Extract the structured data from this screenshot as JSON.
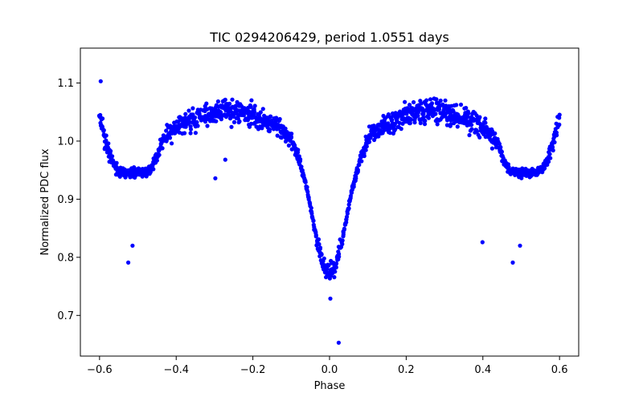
{
  "chart_data": {
    "type": "scatter",
    "title": "TIC 0294206429, period 1.0551 days",
    "xlabel": "Phase",
    "ylabel": "Normalized PDC flux",
    "xlim": [
      -0.65,
      0.65
    ],
    "ylim": [
      0.63,
      1.16
    ],
    "xticks": [
      -0.6,
      -0.4,
      -0.2,
      0.0,
      0.2,
      0.4,
      0.6
    ],
    "xtick_labels": [
      "−0.6",
      "−0.4",
      "−0.2",
      "0.0",
      "0.2",
      "0.4",
      "0.6"
    ],
    "yticks": [
      0.7,
      0.8,
      0.9,
      1.0,
      1.1
    ],
    "ytick_labels": [
      "0.7",
      "0.8",
      "0.9",
      "1.0",
      "1.1"
    ],
    "grid": false,
    "marker_color": "#0000ff",
    "outliers": [
      {
        "x": -0.597,
        "y": 1.103
      },
      {
        "x": -0.525,
        "y": 0.791
      },
      {
        "x": -0.514,
        "y": 0.82
      },
      {
        "x": -0.298,
        "y": 0.936
      },
      {
        "x": -0.272,
        "y": 0.968
      },
      {
        "x": 0.002,
        "y": 0.729
      },
      {
        "x": 0.024,
        "y": 0.653
      },
      {
        "x": 0.399,
        "y": 0.826
      },
      {
        "x": 0.478,
        "y": 0.791
      },
      {
        "x": 0.497,
        "y": 0.82
      }
    ],
    "series": [
      {
        "values": [
          {
            "x": -0.6,
            "y": 1.04
          },
          {
            "x": -0.585,
            "y": 1.0
          },
          {
            "x": -0.57,
            "y": 0.97
          },
          {
            "x": -0.555,
            "y": 0.952
          },
          {
            "x": -0.54,
            "y": 0.945
          },
          {
            "x": -0.5,
            "y": 0.945
          },
          {
            "x": -0.47,
            "y": 0.95
          },
          {
            "x": -0.455,
            "y": 0.965
          },
          {
            "x": -0.44,
            "y": 0.995
          },
          {
            "x": -0.42,
            "y": 1.015
          },
          {
            "x": -0.38,
            "y": 1.03
          },
          {
            "x": -0.3,
            "y": 1.05
          },
          {
            "x": -0.26,
            "y": 1.055
          },
          {
            "x": -0.2,
            "y": 1.045
          },
          {
            "x": -0.15,
            "y": 1.03
          },
          {
            "x": -0.1,
            "y": 1.005
          },
          {
            "x": -0.08,
            "y": 0.97
          },
          {
            "x": -0.06,
            "y": 0.92
          },
          {
            "x": -0.045,
            "y": 0.87
          },
          {
            "x": -0.03,
            "y": 0.82
          },
          {
            "x": -0.015,
            "y": 0.785
          },
          {
            "x": 0.0,
            "y": 0.775
          },
          {
            "x": 0.015,
            "y": 0.785
          },
          {
            "x": 0.03,
            "y": 0.82
          },
          {
            "x": 0.045,
            "y": 0.87
          },
          {
            "x": 0.06,
            "y": 0.92
          },
          {
            "x": 0.08,
            "y": 0.97
          },
          {
            "x": 0.1,
            "y": 1.005
          },
          {
            "x": 0.15,
            "y": 1.03
          },
          {
            "x": 0.2,
            "y": 1.045
          },
          {
            "x": 0.26,
            "y": 1.055
          },
          {
            "x": 0.3,
            "y": 1.05
          },
          {
            "x": 0.38,
            "y": 1.03
          },
          {
            "x": 0.42,
            "y": 1.015
          },
          {
            "x": 0.44,
            "y": 0.995
          },
          {
            "x": 0.455,
            "y": 0.965
          },
          {
            "x": 0.47,
            "y": 0.95
          },
          {
            "x": 0.5,
            "y": 0.945
          },
          {
            "x": 0.54,
            "y": 0.945
          },
          {
            "x": 0.555,
            "y": 0.952
          },
          {
            "x": 0.57,
            "y": 0.97
          },
          {
            "x": 0.585,
            "y": 1.0
          },
          {
            "x": 0.6,
            "y": 1.04
          }
        ]
      }
    ]
  }
}
